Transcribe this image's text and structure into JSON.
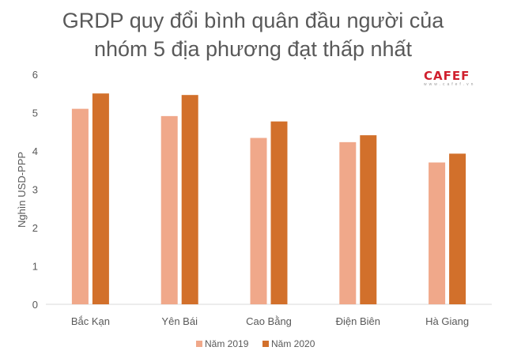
{
  "chart_data": {
    "type": "bar",
    "title_line1": "GRDP quy đổi bình quân đầu người của",
    "title_line2": "nhóm 5 địa phương đạt thấp nhất",
    "xlabel": "",
    "ylabel": "Nghìn USD-PPP",
    "ylim": [
      0,
      6
    ],
    "yticks": [
      0,
      1,
      2,
      3,
      4,
      5,
      6
    ],
    "grid": false,
    "legend_position": "bottom",
    "categories": [
      "Bắc Kạn",
      "Yên Bái",
      "Cao Bằng",
      "Điện Biên",
      "Hà Giang"
    ],
    "series": [
      {
        "name": "Năm 2019",
        "color": "#f0a88a",
        "values": [
          5.1,
          4.91,
          4.34,
          4.23,
          3.7
        ]
      },
      {
        "name": "Năm 2020",
        "color": "#d2702b",
        "values": [
          5.5,
          5.46,
          4.77,
          4.41,
          3.93
        ]
      }
    ]
  },
  "logo": {
    "brand": "CAFEF",
    "sub": "www.cafef.vn"
  }
}
